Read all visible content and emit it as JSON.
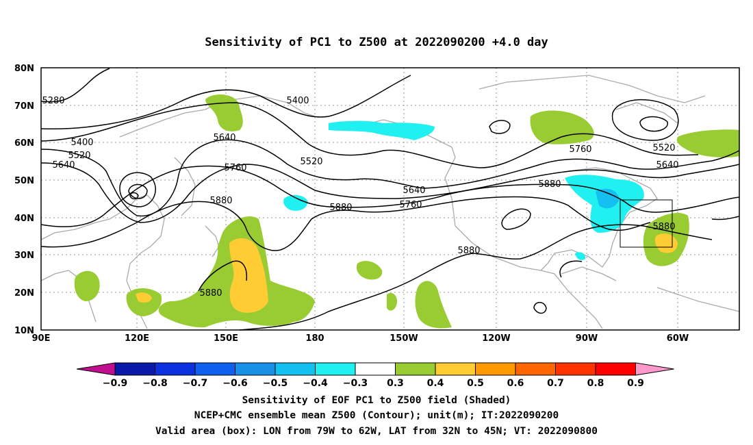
{
  "title": "Sensitivity of PC1 to Z500 at 2022090200 +4.0 day",
  "map": {
    "lon_range": [
      "90E",
      "55W"
    ],
    "lat_range": [
      10,
      80
    ],
    "lat_ticks": [
      "10N",
      "20N",
      "30N",
      "40N",
      "50N",
      "60N",
      "70N",
      "80N"
    ],
    "lon_ticks": [
      "90E",
      "120E",
      "150E",
      "180",
      "150W",
      "120W",
      "90W",
      "60W"
    ],
    "contour_labels": [
      "5280",
      "5400",
      "5400",
      "5520",
      "5640",
      "5640",
      "5520",
      "5640",
      "5760",
      "5880",
      "5880",
      "5640",
      "5760",
      "5880",
      "5880",
      "5760",
      "5520",
      "5640",
      "5880",
      "5880"
    ],
    "valid_box": {
      "lon_min": "79W",
      "lon_max": "62W",
      "lat_min": "32N",
      "lat_max": "45N"
    }
  },
  "colorbar": {
    "labels": [
      "−0.9",
      "−0.8",
      "−0.7",
      "−0.6",
      "−0.5",
      "−0.4",
      "−0.3",
      "0.3",
      "0.4",
      "0.5",
      "0.6",
      "0.7",
      "0.8",
      "0.9"
    ],
    "colors": [
      "#c01090",
      "#0a1aa8",
      "#0a30e0",
      "#1060f0",
      "#1890e8",
      "#14c0f0",
      "#20f0f0",
      "#ffffff",
      "#99cc33",
      "#ffcc33",
      "#ff9900",
      "#ff6600",
      "#ff3300",
      "#ff0000",
      "#ff99cc"
    ]
  },
  "caption": [
    "Sensitivity of EOF PC1 to Z500 field (Shaded)",
    "NCEP+CMC ensemble mean Z500 (Contour); unit(m); IT:2022090200",
    "Valid area (box): LON from 79W to 62W, LAT from 32N to 45N; VT: 2022090800"
  ]
}
